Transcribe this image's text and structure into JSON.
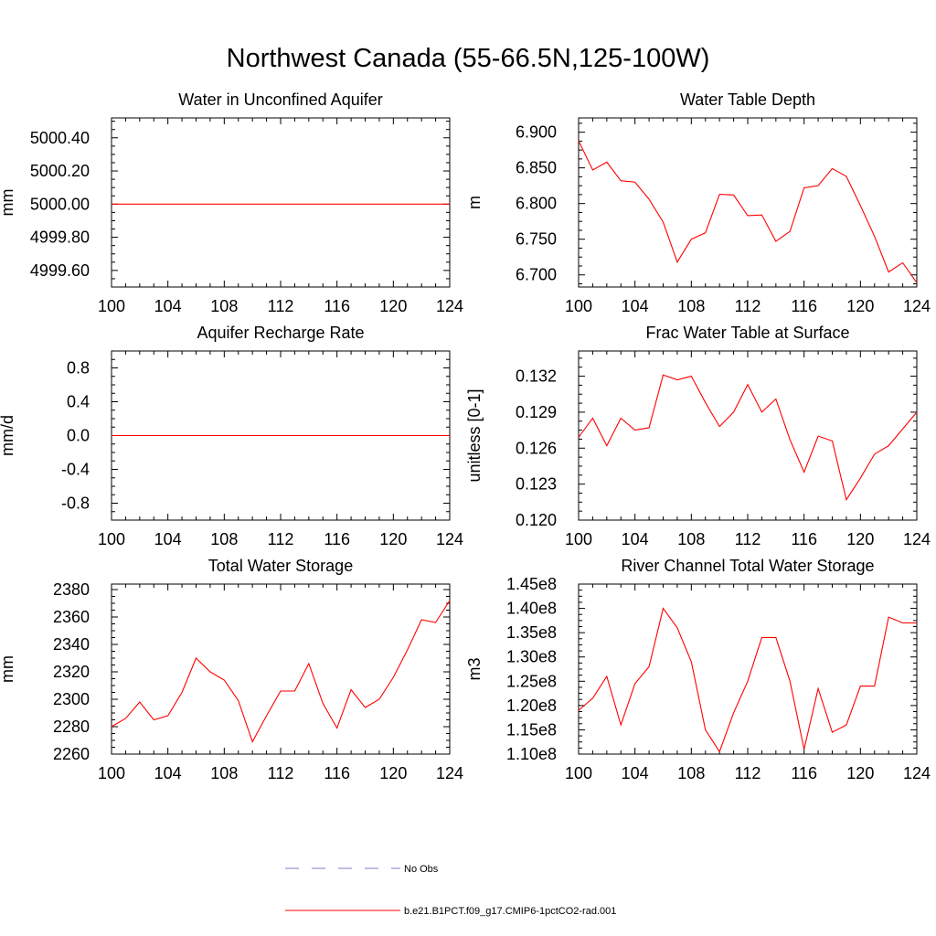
{
  "title": "Northwest Canada (55-66.5N,125-100W)",
  "colors": {
    "model": "#ff0000",
    "obs": "#7b7bc8",
    "axis": "#000000"
  },
  "legend": [
    {
      "label": "No Obs",
      "style": "dashed",
      "color": "#7b7bc8"
    },
    {
      "label": "b.e21.B1PCT.f09_g17.CMIP6-1pctCO2-rad.001",
      "style": "solid",
      "color": "#ff0000"
    }
  ],
  "chart_data": [
    {
      "type": "line",
      "title": "Water in Unconfined Aquifer",
      "ylabel": "mm",
      "xlim": [
        100,
        124
      ],
      "ylim": [
        4999.5,
        5000.52
      ],
      "xticks": [
        "100",
        "104",
        "108",
        "112",
        "116",
        "120",
        "124"
      ],
      "yticks": [
        "4999.60",
        "4999.80",
        "5000.00",
        "5000.20",
        "5000.40"
      ],
      "series": [
        {
          "x": [
            100,
            101,
            102,
            103,
            104,
            105,
            106,
            107,
            108,
            109,
            110,
            111,
            112,
            113,
            114,
            115,
            116,
            117,
            118,
            119,
            120,
            121,
            122,
            123,
            124
          ],
          "y": [
            5000.0,
            5000.0,
            5000.0,
            5000.0,
            5000.0,
            5000.0,
            5000.0,
            5000.0,
            5000.0,
            5000.0,
            5000.0,
            5000.0,
            5000.0,
            5000.0,
            5000.0,
            5000.0,
            5000.0,
            5000.0,
            5000.0,
            5000.0,
            5000.0,
            5000.0,
            5000.0,
            5000.0,
            5000.0
          ]
        }
      ]
    },
    {
      "type": "line",
      "title": "Water Table Depth",
      "ylabel": "m",
      "xlim": [
        100,
        124
      ],
      "ylim": [
        6.683,
        6.92
      ],
      "xticks": [
        "100",
        "104",
        "108",
        "112",
        "116",
        "120",
        "124"
      ],
      "yticks": [
        "6.700",
        "6.750",
        "6.800",
        "6.850",
        "6.900"
      ],
      "series": [
        {
          "x": [
            100,
            101,
            102,
            103,
            104,
            105,
            106,
            107,
            108,
            109,
            110,
            111,
            112,
            113,
            114,
            115,
            116,
            117,
            118,
            119,
            120,
            121,
            122,
            123,
            124
          ],
          "y": [
            6.888,
            6.847,
            6.858,
            6.832,
            6.83,
            6.806,
            6.774,
            6.718,
            6.75,
            6.759,
            6.813,
            6.812,
            6.783,
            6.784,
            6.747,
            6.761,
            6.822,
            6.825,
            6.849,
            6.838,
            6.797,
            6.754,
            6.704,
            6.717,
            6.689
          ]
        }
      ]
    },
    {
      "type": "line",
      "title": "Aquifer Recharge Rate",
      "ylabel": "mm/d",
      "xlim": [
        100,
        124
      ],
      "ylim": [
        -1.0,
        1.0
      ],
      "xticks": [
        "100",
        "104",
        "108",
        "112",
        "116",
        "120",
        "124"
      ],
      "yticks": [
        "-0.8",
        "-0.4",
        "0.0",
        "0.4",
        "0.8"
      ],
      "series": [
        {
          "x": [
            100,
            101,
            102,
            103,
            104,
            105,
            106,
            107,
            108,
            109,
            110,
            111,
            112,
            113,
            114,
            115,
            116,
            117,
            118,
            119,
            120,
            121,
            122,
            123,
            124
          ],
          "y": [
            0,
            0,
            0,
            0,
            0,
            0,
            0,
            0,
            0,
            0,
            0,
            0,
            0,
            0,
            0,
            0,
            0,
            0,
            0,
            0,
            0,
            0,
            0,
            0,
            0
          ]
        }
      ]
    },
    {
      "type": "line",
      "title": "Frac Water Table at Surface",
      "ylabel": "unitless [0-1]",
      "xlim": [
        100,
        124
      ],
      "ylim": [
        0.12,
        0.1341
      ],
      "xticks": [
        "100",
        "104",
        "108",
        "112",
        "116",
        "120",
        "124"
      ],
      "yticks": [
        "0.120",
        "0.123",
        "0.126",
        "0.129",
        "0.132"
      ],
      "series": [
        {
          "x": [
            100,
            101,
            102,
            103,
            104,
            105,
            106,
            107,
            108,
            109,
            110,
            111,
            112,
            113,
            114,
            115,
            116,
            117,
            118,
            119,
            120,
            121,
            122,
            123,
            124
          ],
          "y": [
            0.1269,
            0.1285,
            0.1262,
            0.1285,
            0.1275,
            0.1277,
            0.1321,
            0.1317,
            0.132,
            0.1298,
            0.1278,
            0.129,
            0.1313,
            0.129,
            0.1301,
            0.1267,
            0.124,
            0.127,
            0.1266,
            0.1217,
            0.1235,
            0.1255,
            0.1262,
            0.1276,
            0.129
          ]
        }
      ]
    },
    {
      "type": "line",
      "title": "Total Water Storage",
      "ylabel": "mm",
      "xlim": [
        100,
        124
      ],
      "ylim": [
        2260,
        2384
      ],
      "xticks": [
        "100",
        "104",
        "108",
        "112",
        "116",
        "120",
        "124"
      ],
      "yticks": [
        "2260",
        "2280",
        "2300",
        "2320",
        "2340",
        "2360",
        "2380"
      ],
      "series": [
        {
          "x": [
            100,
            101,
            102,
            103,
            104,
            105,
            106,
            107,
            108,
            109,
            110,
            111,
            112,
            113,
            114,
            115,
            116,
            117,
            118,
            119,
            120,
            121,
            122,
            123,
            124
          ],
          "y": [
            2280,
            2286,
            2298,
            2285,
            2288,
            2305,
            2330,
            2320,
            2314,
            2299,
            2269,
            2288,
            2306,
            2306,
            2326,
            2297,
            2279,
            2307,
            2294,
            2300,
            2316,
            2336,
            2358,
            2356,
            2372
          ]
        }
      ]
    },
    {
      "type": "line",
      "title": "River Channel Total Water Storage",
      "ylabel": "m3",
      "xlim": [
        100,
        124
      ],
      "ylim": [
        110000000.0,
        145000000.0
      ],
      "xticks": [
        "100",
        "104",
        "108",
        "112",
        "116",
        "120",
        "124"
      ],
      "yticks": [
        "1.10e8",
        "1.15e8",
        "1.20e8",
        "1.25e8",
        "1.30e8",
        "1.35e8",
        "1.40e8",
        "1.45e8"
      ],
      "series": [
        {
          "x": [
            100,
            101,
            102,
            103,
            104,
            105,
            106,
            107,
            108,
            109,
            110,
            111,
            112,
            113,
            114,
            115,
            116,
            117,
            118,
            119,
            120,
            121,
            122,
            123,
            124
          ],
          "y": [
            119000000.0,
            121500000.0,
            126000000.0,
            116000000.0,
            124500000.0,
            128000000.0,
            140000000.0,
            136000000.0,
            129000000.0,
            115000000.0,
            110500000.0,
            118500000.0,
            125000000.0,
            134000000.0,
            134000000.0,
            125000000.0,
            111000000.0,
            123500000.0,
            114500000.0,
            116000000.0,
            124000000.0,
            124000000.0,
            138200000.0,
            137000000.0,
            137000000.0
          ]
        }
      ]
    }
  ]
}
